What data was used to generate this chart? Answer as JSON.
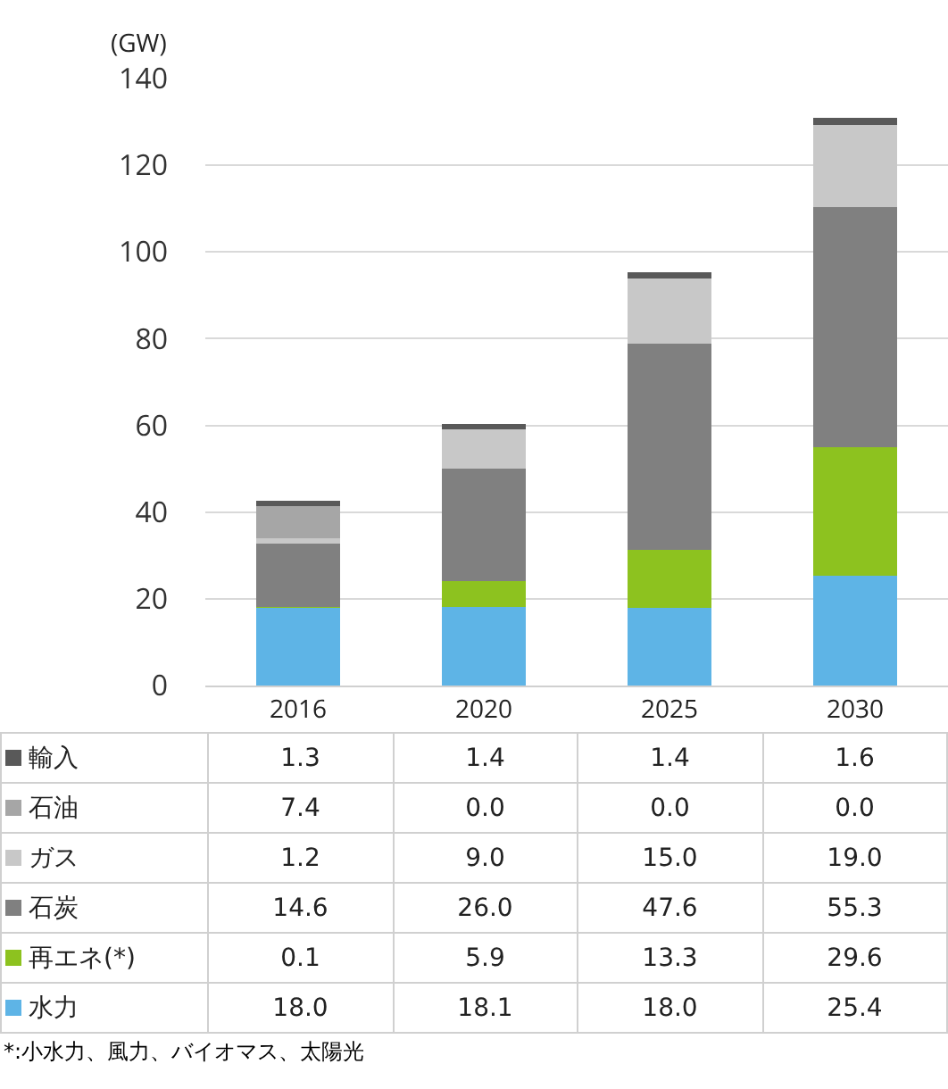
{
  "chart_data": {
    "type": "bar",
    "stacked": true,
    "ylabel": "(GW)",
    "categories": [
      "2016",
      "2020",
      "2025",
      "2030"
    ],
    "series": [
      {
        "name": "水力",
        "color": "#5eb4e6",
        "values": [
          18.0,
          18.1,
          18.0,
          25.4
        ],
        "value_labels": [
          "18.0",
          "18.1",
          "18.0",
          "25.4"
        ]
      },
      {
        "name": "再エネ(*)",
        "color": "#8dc21f",
        "values": [
          0.1,
          5.9,
          13.3,
          29.6
        ],
        "value_labels": [
          "0.1",
          "5.9",
          "13.3",
          "29.6"
        ]
      },
      {
        "name": "石炭",
        "color": "#808080",
        "values": [
          14.6,
          26.0,
          47.6,
          55.3
        ],
        "value_labels": [
          "14.6",
          "26.0",
          "47.6",
          "55.3"
        ]
      },
      {
        "name": "ガス",
        "color": "#c8c8c8",
        "values": [
          1.2,
          9.0,
          15.0,
          19.0
        ],
        "value_labels": [
          "1.2",
          "9.0",
          "15.0",
          "19.0"
        ]
      },
      {
        "name": "石油",
        "color": "#a6a6a6",
        "values": [
          7.4,
          0.0,
          0.0,
          0.0
        ],
        "value_labels": [
          "7.4",
          "0.0",
          "0.0",
          "0.0"
        ]
      },
      {
        "name": "輸入",
        "color": "#595959",
        "values": [
          1.3,
          1.4,
          1.4,
          1.6
        ],
        "value_labels": [
          "1.3",
          "1.4",
          "1.4",
          "1.6"
        ]
      }
    ],
    "ylim": [
      0,
      140
    ],
    "yticks": [
      0,
      20,
      40,
      60,
      80,
      100,
      120,
      140
    ],
    "grid": "y",
    "legend": "bottom",
    "annotations": [
      "*:小水力、風力、バイオマス、太陽光"
    ]
  }
}
